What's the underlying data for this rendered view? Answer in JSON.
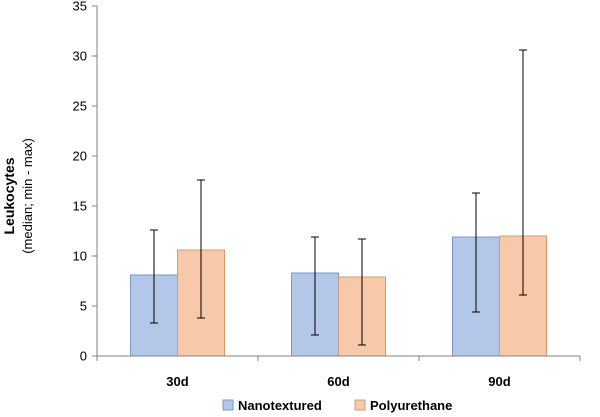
{
  "chart_data": {
    "type": "bar",
    "categories": [
      "30d",
      "60d",
      "90d"
    ],
    "ylabel": "Leukocytes",
    "ylabel_sub": "(median; min - max)",
    "ylim": [
      0,
      35
    ],
    "yticks": [
      0,
      5,
      10,
      15,
      20,
      25,
      30,
      35
    ],
    "grid": false,
    "legend_position": "bottom",
    "series": [
      {
        "name": "Nanotextured",
        "color": "#b3c7e8",
        "stroke": "#7f97c4",
        "values": [
          8.1,
          8.3,
          11.9
        ],
        "min": [
          3.3,
          2.1,
          4.4
        ],
        "max": [
          12.6,
          11.9,
          16.3
        ]
      },
      {
        "name": "Polyurethane",
        "color": "#f8c9a8",
        "stroke": "#d39a76",
        "values": [
          10.6,
          7.9,
          12.0
        ],
        "min": [
          3.8,
          1.1,
          6.1
        ],
        "max": [
          17.6,
          11.7,
          30.6
        ]
      }
    ]
  }
}
